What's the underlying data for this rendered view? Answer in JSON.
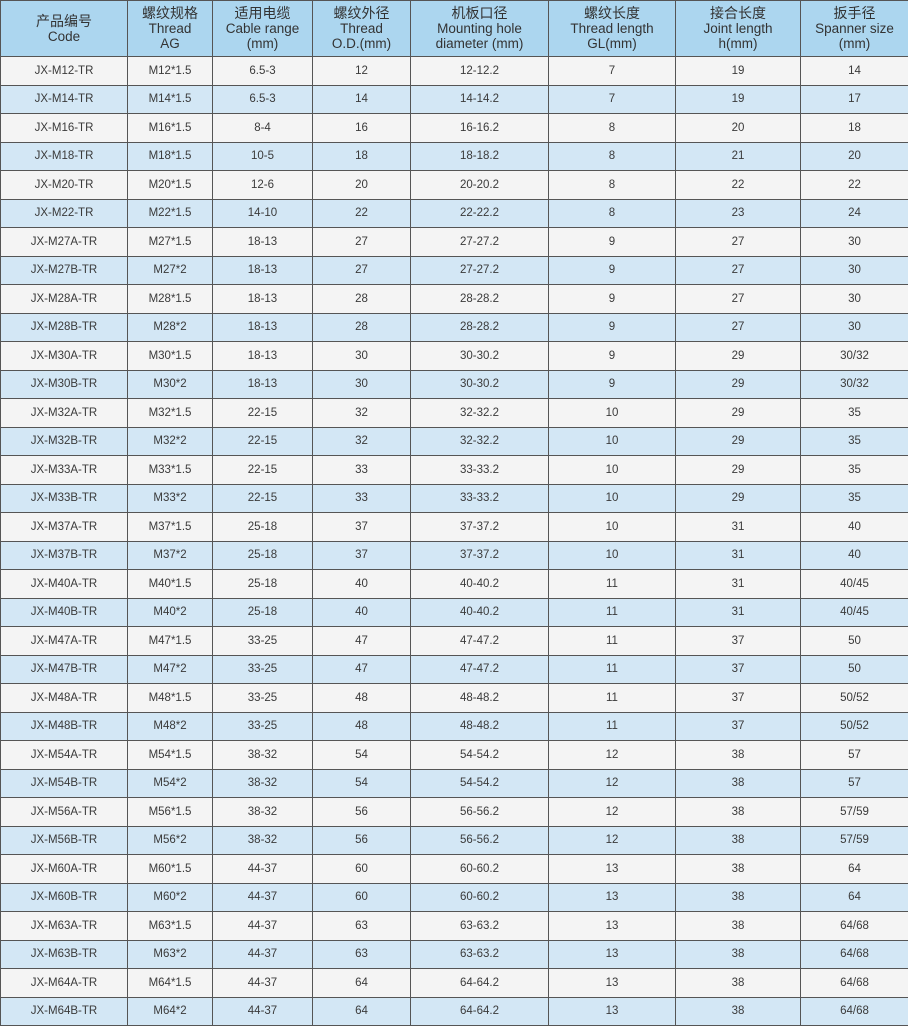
{
  "colors": {
    "header_bg": "#acd6ef",
    "row_light": "#f4f4f4",
    "row_blue": "#d3e7f5",
    "border": "#555555"
  },
  "headers": [
    {
      "zh": "产品编号",
      "en": [
        "Code"
      ]
    },
    {
      "zh": "螺纹规格",
      "en": [
        "Thread",
        "AG"
      ]
    },
    {
      "zh": "适用电缆",
      "en": [
        "Cable range",
        "(mm)"
      ]
    },
    {
      "zh": "螺纹外径",
      "en": [
        "Thread",
        "O.D.(mm)"
      ]
    },
    {
      "zh": "机板口径",
      "en": [
        "Mounting hole",
        "diameter (mm)"
      ]
    },
    {
      "zh": "螺纹长度",
      "en": [
        "Thread length",
        "GL(mm)"
      ]
    },
    {
      "zh": "接合长度",
      "en": [
        "Joint length",
        "h(mm)"
      ]
    },
    {
      "zh": "扳手径",
      "en": [
        "Spanner size",
        "(mm)"
      ]
    }
  ],
  "rows": [
    [
      "JX-M12-TR",
      "M12*1.5",
      "6.5-3",
      "12",
      "12-12.2",
      "7",
      "19",
      "14"
    ],
    [
      "JX-M14-TR",
      "M14*1.5",
      "6.5-3",
      "14",
      "14-14.2",
      "7",
      "19",
      "17"
    ],
    [
      "JX-M16-TR",
      "M16*1.5",
      "8-4",
      "16",
      "16-16.2",
      "8",
      "20",
      "18"
    ],
    [
      "JX-M18-TR",
      "M18*1.5",
      "10-5",
      "18",
      "18-18.2",
      "8",
      "21",
      "20"
    ],
    [
      "JX-M20-TR",
      "M20*1.5",
      "12-6",
      "20",
      "20-20.2",
      "8",
      "22",
      "22"
    ],
    [
      "JX-M22-TR",
      "M22*1.5",
      "14-10",
      "22",
      "22-22.2",
      "8",
      "23",
      "24"
    ],
    [
      "JX-M27A-TR",
      "M27*1.5",
      "18-13",
      "27",
      "27-27.2",
      "9",
      "27",
      "30"
    ],
    [
      "JX-M27B-TR",
      "M27*2",
      "18-13",
      "27",
      "27-27.2",
      "9",
      "27",
      "30"
    ],
    [
      "JX-M28A-TR",
      "M28*1.5",
      "18-13",
      "28",
      "28-28.2",
      "9",
      "27",
      "30"
    ],
    [
      "JX-M28B-TR",
      "M28*2",
      "18-13",
      "28",
      "28-28.2",
      "9",
      "27",
      "30"
    ],
    [
      "JX-M30A-TR",
      "M30*1.5",
      "18-13",
      "30",
      "30-30.2",
      "9",
      "29",
      "30/32"
    ],
    [
      "JX-M30B-TR",
      "M30*2",
      "18-13",
      "30",
      "30-30.2",
      "9",
      "29",
      "30/32"
    ],
    [
      "JX-M32A-TR",
      "M32*1.5",
      "22-15",
      "32",
      "32-32.2",
      "10",
      "29",
      "35"
    ],
    [
      "JX-M32B-TR",
      "M32*2",
      "22-15",
      "32",
      "32-32.2",
      "10",
      "29",
      "35"
    ],
    [
      "JX-M33A-TR",
      "M33*1.5",
      "22-15",
      "33",
      "33-33.2",
      "10",
      "29",
      "35"
    ],
    [
      "JX-M33B-TR",
      "M33*2",
      "22-15",
      "33",
      "33-33.2",
      "10",
      "29",
      "35"
    ],
    [
      "JX-M37A-TR",
      "M37*1.5",
      "25-18",
      "37",
      "37-37.2",
      "10",
      "31",
      "40"
    ],
    [
      "JX-M37B-TR",
      "M37*2",
      "25-18",
      "37",
      "37-37.2",
      "10",
      "31",
      "40"
    ],
    [
      "JX-M40A-TR",
      "M40*1.5",
      "25-18",
      "40",
      "40-40.2",
      "11",
      "31",
      "40/45"
    ],
    [
      "JX-M40B-TR",
      "M40*2",
      "25-18",
      "40",
      "40-40.2",
      "11",
      "31",
      "40/45"
    ],
    [
      "JX-M47A-TR",
      "M47*1.5",
      "33-25",
      "47",
      "47-47.2",
      "11",
      "37",
      "50"
    ],
    [
      "JX-M47B-TR",
      "M47*2",
      "33-25",
      "47",
      "47-47.2",
      "11",
      "37",
      "50"
    ],
    [
      "JX-M48A-TR",
      "M48*1.5",
      "33-25",
      "48",
      "48-48.2",
      "11",
      "37",
      "50/52"
    ],
    [
      "JX-M48B-TR",
      "M48*2",
      "33-25",
      "48",
      "48-48.2",
      "11",
      "37",
      "50/52"
    ],
    [
      "JX-M54A-TR",
      "M54*1.5",
      "38-32",
      "54",
      "54-54.2",
      "12",
      "38",
      "57"
    ],
    [
      "JX-M54B-TR",
      "M54*2",
      "38-32",
      "54",
      "54-54.2",
      "12",
      "38",
      "57"
    ],
    [
      "JX-M56A-TR",
      "M56*1.5",
      "38-32",
      "56",
      "56-56.2",
      "12",
      "38",
      "57/59"
    ],
    [
      "JX-M56B-TR",
      "M56*2",
      "38-32",
      "56",
      "56-56.2",
      "12",
      "38",
      "57/59"
    ],
    [
      "JX-M60A-TR",
      "M60*1.5",
      "44-37",
      "60",
      "60-60.2",
      "13",
      "38",
      "64"
    ],
    [
      "JX-M60B-TR",
      "M60*2",
      "44-37",
      "60",
      "60-60.2",
      "13",
      "38",
      "64"
    ],
    [
      "JX-M63A-TR",
      "M63*1.5",
      "44-37",
      "63",
      "63-63.2",
      "13",
      "38",
      "64/68"
    ],
    [
      "JX-M63B-TR",
      "M63*2",
      "44-37",
      "63",
      "63-63.2",
      "13",
      "38",
      "64/68"
    ],
    [
      "JX-M64A-TR",
      "M64*1.5",
      "44-37",
      "64",
      "64-64.2",
      "13",
      "38",
      "64/68"
    ],
    [
      "JX-M64B-TR",
      "M64*2",
      "44-37",
      "64",
      "64-64.2",
      "13",
      "38",
      "64/68"
    ]
  ]
}
